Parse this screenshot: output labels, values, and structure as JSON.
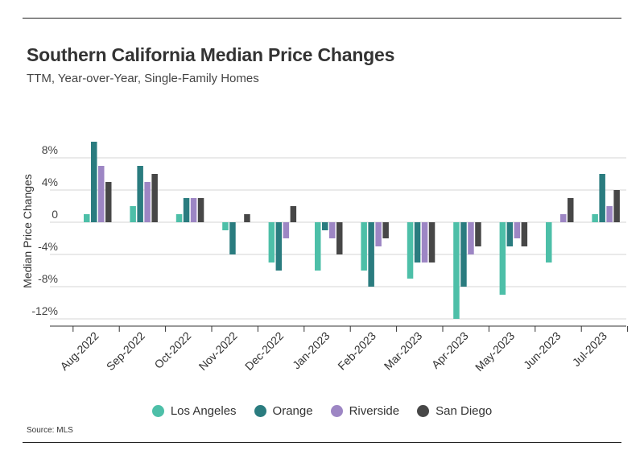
{
  "header": {
    "title": "Southern California Median Price Changes",
    "subtitle": "TTM, Year-over-Year, Single-Family Homes"
  },
  "footer": {
    "source": "Source: MLS"
  },
  "chart_data": {
    "type": "bar",
    "title": "Southern California Median Price Changes",
    "subtitle": "TTM, Year-over-Year, Single-Family Homes",
    "xlabel": "",
    "ylabel": "Median Price Changes",
    "ylim": [
      -12.5,
      10
    ],
    "y_ticks": [
      8,
      4,
      0,
      -4,
      -8,
      -12
    ],
    "y_tick_labels": [
      "8%",
      "4%",
      "0",
      "-4%",
      "-8%",
      "-12%"
    ],
    "grid": true,
    "legend_position": "bottom",
    "categories": [
      "Aug-2022",
      "Sep-2022",
      "Oct-2022",
      "Nov-2022",
      "Dec-2022",
      "Jan-2023",
      "Feb-2023",
      "Mar-2023",
      "Apr-2023",
      "May-2023",
      "Jun-2023",
      "Jul-2023"
    ],
    "series": [
      {
        "name": "Los Angeles",
        "color": "#4dbfa8",
        "values": [
          1,
          2,
          1,
          -1,
          -5,
          -6,
          -6,
          -7,
          -12,
          -9,
          -5,
          1
        ]
      },
      {
        "name": "Orange",
        "color": "#2a7c7f",
        "values": [
          10,
          7,
          3,
          -4,
          -6,
          -1,
          -8,
          -5,
          -8,
          -3,
          0,
          6
        ]
      },
      {
        "name": "Riverside",
        "color": "#9d86c4",
        "values": [
          7,
          5,
          3,
          0,
          -2,
          -2,
          -3,
          -5,
          -4,
          -2,
          1,
          2
        ]
      },
      {
        "name": "San Diego",
        "color": "#474747",
        "values": [
          5,
          6,
          3,
          1,
          2,
          -4,
          -2,
          -5,
          -3,
          -3,
          3,
          4
        ]
      }
    ]
  }
}
